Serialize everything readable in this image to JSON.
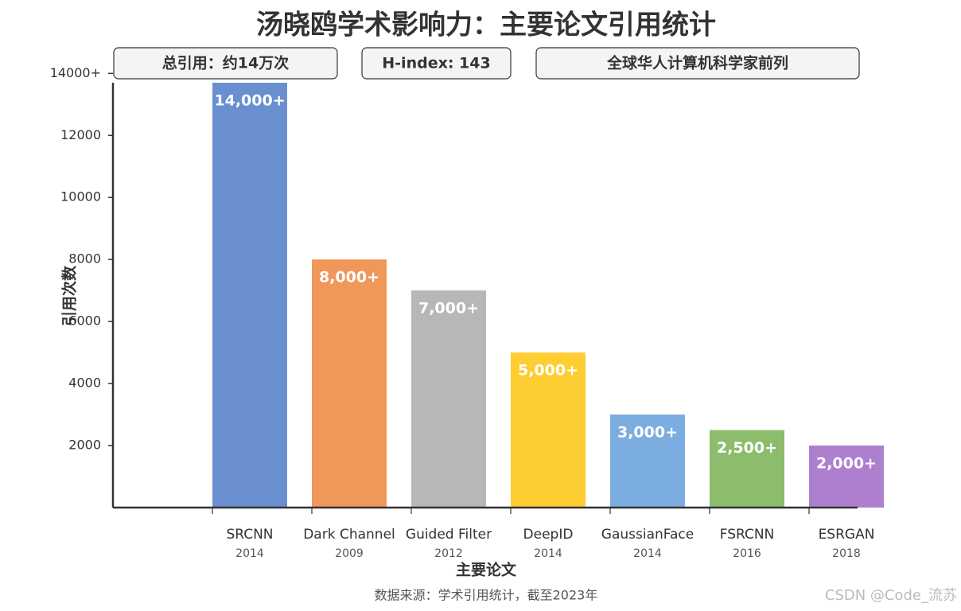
{
  "chart_data": {
    "type": "bar",
    "title": "汤晓鸥学术影响力：主要论文引用统计",
    "annotations": [
      "总引用：约14万次",
      "H-index: 143",
      "全球华人计算机科学家前列"
    ],
    "categories": [
      "SRCNN",
      "Dark Channel",
      "Guided Filter",
      "DeepID",
      "GaussianFace",
      "FSRCNN",
      "ESRGAN"
    ],
    "years": [
      "2014",
      "2009",
      "2012",
      "2014",
      "2014",
      "2016",
      "2018"
    ],
    "values": [
      14000,
      8000,
      7000,
      5000,
      3000,
      2500,
      2000
    ],
    "value_labels": [
      "14,000+",
      "8,000+",
      "7,000+",
      "5,000+",
      "3,000+",
      "2,500+",
      "2,000+"
    ],
    "colors": [
      "#6a8fd0",
      "#f0975a",
      "#b7b7b7",
      "#fdcd32",
      "#7cade0",
      "#8bbd6c",
      "#ae7fce"
    ],
    "ylim": [
      0,
      13700
    ],
    "yticks": [
      2000,
      4000,
      6000,
      8000,
      10000,
      12000,
      {
        "value": 14000,
        "label": "14000+"
      }
    ],
    "xlabel": "主要论文",
    "ylabel": "引用次数",
    "source": "数据来源：学术引用统计，截至2023年",
    "watermark": "CSDN @Code_流苏"
  }
}
